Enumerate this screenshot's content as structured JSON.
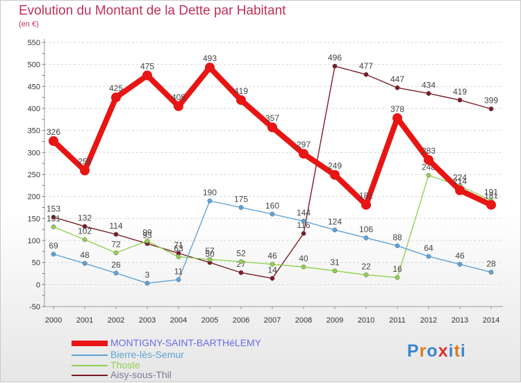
{
  "header": {
    "title": "Evolution du Montant de la Dette par Habitant",
    "subtitle": "(en €)"
  },
  "logo": {
    "letters": [
      "P",
      "r",
      "o",
      "x",
      "i",
      "t",
      "i"
    ],
    "colors": [
      "#3a86d0",
      "#e07a1f",
      "#3a86d0",
      "#e0302a",
      "#3a86d0",
      "#e07a1f",
      "#3a86d0"
    ]
  },
  "chart_data": {
    "type": "line",
    "title": "Evolution du Montant de la Dette par Habitant",
    "xlabel": "",
    "ylabel": "(en €)",
    "categories": [
      "2000",
      "2001",
      "2002",
      "2003",
      "2004",
      "2005",
      "2006",
      "2007",
      "2008",
      "2009",
      "2010",
      "2011",
      "2012",
      "2013",
      "2014"
    ],
    "ylim": [
      -50,
      550
    ],
    "yticks": [
      -50,
      0,
      50,
      100,
      150,
      200,
      250,
      300,
      350,
      400,
      450,
      500,
      550
    ],
    "grid": "horizontal",
    "legend_position": "bottom-left",
    "series": [
      {
        "name": "MONTIGNY-SAINT-BARTHéLEMY",
        "color": "#e81515",
        "values": [
          326,
          259,
          425,
          475,
          405,
          493,
          419,
          357,
          297,
          249,
          181,
          378,
          283,
          214,
          181
        ]
      },
      {
        "name": "Bierre-lès-Semur",
        "color": "#5ea2d6",
        "values": [
          69,
          48,
          26,
          3,
          11,
          190,
          175,
          160,
          144,
          124,
          106,
          88,
          64,
          46,
          28
        ]
      },
      {
        "name": "Thoste",
        "color": "#92d050",
        "values": [
          131,
          102,
          72,
          99,
          63,
          57,
          52,
          46,
          40,
          31,
          22,
          16,
          248,
          224,
          191
        ]
      },
      {
        "name": "Aisy-sous-Thil",
        "color": "#7b1c25",
        "values": [
          153,
          132,
          114,
          93,
          71,
          50,
          27,
          14,
          116,
          496,
          477,
          447,
          434,
          419,
          399
        ]
      }
    ]
  }
}
